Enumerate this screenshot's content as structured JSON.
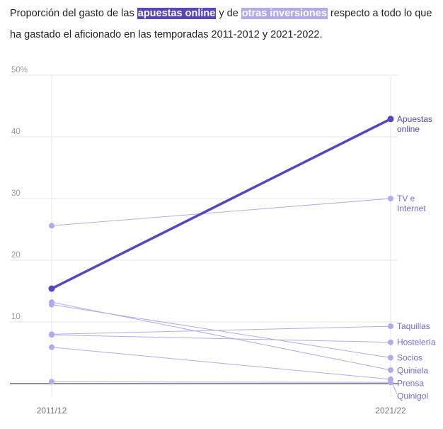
{
  "title": {
    "part1": "Proporción del gasto de las ",
    "highlight1": "apuestas online",
    "part2": " y de ",
    "highlight2": "otras inversiones",
    "part3": " respecto a todo lo que ha gastado el aficionado en las temporadas 2011-2012 y 2021-2022."
  },
  "colors": {
    "main": "#5a44c4",
    "other": "#b5a8f0",
    "other_label": "#7a68d6",
    "grid": "#e6e6e6",
    "baseline": "#222222"
  },
  "chart_data": {
    "type": "line",
    "x": [
      "2011/12",
      "2021/22"
    ],
    "ylim": [
      0,
      50
    ],
    "yticks": [
      0,
      10,
      20,
      30,
      40,
      50
    ],
    "ytick_labels": [
      "",
      "10",
      "20",
      "30",
      "40",
      "50%"
    ],
    "grid": true,
    "series": [
      {
        "name": "Apuestas online",
        "values": [
          15.4,
          42.9
        ],
        "highlight": true
      },
      {
        "name": "TV e Internet",
        "values": [
          25.6,
          30.0
        ]
      },
      {
        "name": "Taquillas",
        "values": [
          8.0,
          9.3
        ]
      },
      {
        "name": "Hostelería",
        "values": [
          7.9,
          6.7
        ]
      },
      {
        "name": "Socios",
        "values": [
          12.8,
          4.2
        ]
      },
      {
        "name": "Quiniela",
        "values": [
          13.2,
          2.2
        ]
      },
      {
        "name": "Prensa",
        "values": [
          5.9,
          0.7
        ]
      },
      {
        "name": "Quinigol",
        "values": [
          0.3,
          0.2
        ]
      }
    ]
  }
}
